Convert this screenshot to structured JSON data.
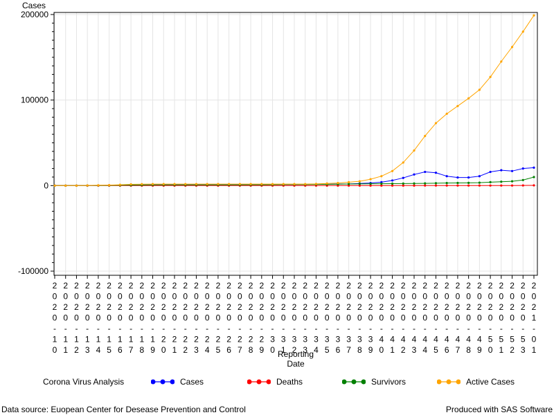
{
  "chart_data": {
    "type": "line",
    "ylabel": "Cases",
    "xlabel": "Reporting Date",
    "xlabel_lines": [
      "Reporting",
      "Date"
    ],
    "ylim": [
      -100000,
      200000
    ],
    "yticks": [
      -100000,
      0,
      100000,
      200000
    ],
    "grid": true,
    "legend_position": "bottom",
    "categories": [
      "2020-10",
      "2020-11",
      "2020-12",
      "2020-13",
      "2020-14",
      "2020-15",
      "2020-16",
      "2020-17",
      "2020-18",
      "2020-19",
      "2020-20",
      "2020-21",
      "2020-22",
      "2020-23",
      "2020-24",
      "2020-25",
      "2020-26",
      "2020-27",
      "2020-28",
      "2020-29",
      "2020-30",
      "2020-31",
      "2020-32",
      "2020-33",
      "2020-34",
      "2020-35",
      "2020-36",
      "2020-37",
      "2020-38",
      "2020-39",
      "2020-40",
      "2020-41",
      "2020-42",
      "2020-43",
      "2020-44",
      "2020-45",
      "2020-46",
      "2020-47",
      "2020-48",
      "2020-49",
      "2020-50",
      "2020-51",
      "2020-52",
      "2020-53",
      "2021-01"
    ],
    "series": [
      {
        "name": "Cases",
        "color": "#0000ff",
        "values": [
          0,
          0,
          0,
          100,
          200,
          400,
          500,
          700,
          800,
          900,
          1000,
          1000,
          1000,
          1000,
          1000,
          1000,
          1000,
          1000,
          1000,
          1000,
          1100,
          1200,
          1300,
          1400,
          1500,
          1600,
          1800,
          2000,
          2500,
          3000,
          4000,
          6000,
          9000,
          13000,
          16000,
          15000,
          11000,
          9500,
          9500,
          11000,
          16000,
          18000,
          17000,
          20000,
          21000
        ]
      },
      {
        "name": "Deaths",
        "color": "#ff0000",
        "values": [
          0,
          0,
          0,
          0,
          0,
          0,
          0,
          0,
          0,
          0,
          0,
          0,
          0,
          0,
          0,
          0,
          0,
          0,
          0,
          0,
          0,
          0,
          0,
          0,
          0,
          0,
          0,
          0,
          0,
          0,
          0,
          0,
          0,
          0,
          100,
          100,
          100,
          100,
          100,
          100,
          100,
          100,
          100,
          200,
          300
        ]
      },
      {
        "name": "Survivors",
        "color": "#008000",
        "values": [
          0,
          0,
          0,
          100,
          200,
          300,
          400,
          600,
          700,
          800,
          900,
          900,
          900,
          900,
          900,
          900,
          900,
          900,
          1000,
          1000,
          1100,
          1200,
          1300,
          1300,
          1400,
          1500,
          1700,
          1900,
          2000,
          2100,
          2200,
          2300,
          2400,
          2500,
          2600,
          2800,
          3000,
          3100,
          3200,
          3400,
          4000,
          4500,
          5000,
          6500,
          10000
        ]
      },
      {
        "name": "Active Cases",
        "color": "#ffa500",
        "values": [
          0,
          0,
          0,
          200,
          400,
          600,
          1000,
          1500,
          1700,
          1800,
          1800,
          1800,
          1800,
          1800,
          1800,
          1800,
          1800,
          1800,
          1800,
          1800,
          1800,
          1800,
          1800,
          1800,
          2000,
          2500,
          3000,
          4000,
          5000,
          7500,
          11000,
          17000,
          27000,
          41000,
          58000,
          73000,
          84000,
          93000,
          102000,
          112000,
          127000,
          145000,
          162000,
          180000,
          199000
        ]
      }
    ]
  },
  "legend": {
    "title": "Corona Virus Analysis",
    "entries": [
      "Cases",
      "Deaths",
      "Survivors",
      "Active Cases"
    ]
  },
  "footer": {
    "source": "Data source: Euopean Center for Desease Prevention and Control",
    "produced": "Produced with SAS Software"
  }
}
